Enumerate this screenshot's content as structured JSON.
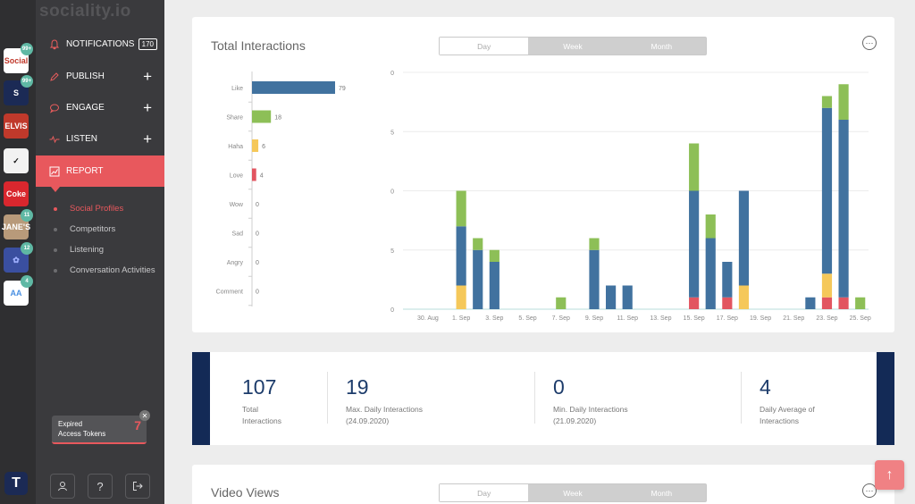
{
  "brand": "sociality.io",
  "accounts": [
    {
      "label": "Social",
      "bg": "#ffffff",
      "fg": "#c0392b",
      "badge": "99+"
    },
    {
      "label": "S",
      "bg": "#1b2a55",
      "fg": "#ffffff",
      "badge": "99+"
    },
    {
      "label": "ELVIS",
      "bg": "#c0392b",
      "fg": "#ffffff",
      "badge": ""
    },
    {
      "label": "✓",
      "bg": "#f2f2f2",
      "fg": "#111111",
      "badge": ""
    },
    {
      "label": "Coke",
      "bg": "#d9272e",
      "fg": "#ffffff",
      "badge": ""
    },
    {
      "label": "JANE'S",
      "bg": "#b89a7a",
      "fg": "#ffffff",
      "badge": "11"
    },
    {
      "label": "✿",
      "bg": "#3a4fa0",
      "fg": "#9fb0ff",
      "badge": "12"
    },
    {
      "label": "AA",
      "bg": "#ffffff",
      "fg": "#4a90e2",
      "badge": "4"
    }
  ],
  "nav": {
    "notifications": {
      "label": "NOTIFICATIONS",
      "count": "170"
    },
    "publish": "PUBLISH",
    "engage": "ENGAGE",
    "listen": "LISTEN",
    "report": "REPORT",
    "sub": [
      "Social Profiles",
      "Competitors",
      "Listening",
      "Conversation Activities"
    ]
  },
  "expired": {
    "line1": "Expired",
    "line2": "Access Tokens",
    "count": "7"
  },
  "interactions_card": {
    "title": "Total Interactions",
    "tabs": [
      "Day",
      "Week",
      "Month"
    ]
  },
  "video_card": {
    "title": "Video Views",
    "tabs": [
      "Day",
      "Week",
      "Month"
    ]
  },
  "colors": {
    "like": "#41729f",
    "share": "#8dbf57",
    "haha": "#f5c85a",
    "love": "#e25560"
  },
  "chart_data": [
    {
      "type": "bar",
      "orientation": "horizontal",
      "categories": [
        "Like",
        "Share",
        "Haha",
        "Love",
        "Wow",
        "Sad",
        "Angry",
        "Comment"
      ],
      "values": [
        79,
        18,
        6,
        4,
        0,
        0,
        0,
        0
      ]
    },
    {
      "type": "bar",
      "stacked": true,
      "x_tick_labels": [
        "30. Aug",
        "1. Sep",
        "3. Sep",
        "5. Sep",
        "7. Sep",
        "9. Sep",
        "11. Sep",
        "13. Sep",
        "15. Sep",
        "17. Sep",
        "19. Sep",
        "21. Sep",
        "23. Sep",
        "25. Sep"
      ],
      "x_days": [
        "29. Aug",
        "30. Aug",
        "31. Aug",
        "1. Sep",
        "2. Sep",
        "3. Sep",
        "4. Sep",
        "5. Sep",
        "6. Sep",
        "7. Sep",
        "8. Sep",
        "9. Sep",
        "10. Sep",
        "11. Sep",
        "12. Sep",
        "13. Sep",
        "14. Sep",
        "15. Sep",
        "16. Sep",
        "17. Sep",
        "18. Sep",
        "19. Sep",
        "20. Sep",
        "21. Sep",
        "22. Sep",
        "23. Sep",
        "24. Sep",
        "25. Sep"
      ],
      "series": [
        {
          "key": "love",
          "values": [
            0,
            0,
            0,
            0,
            0,
            0,
            0,
            0,
            0,
            0,
            0,
            0,
            0,
            0,
            0,
            0,
            0,
            1,
            0,
            1,
            0,
            0,
            0,
            0,
            0,
            1,
            1,
            0
          ]
        },
        {
          "key": "haha",
          "values": [
            0,
            0,
            0,
            2,
            0,
            0,
            0,
            0,
            0,
            0,
            0,
            0,
            0,
            0,
            0,
            0,
            0,
            0,
            0,
            0,
            2,
            0,
            0,
            0,
            0,
            2,
            0,
            0
          ]
        },
        {
          "key": "like",
          "values": [
            0,
            0,
            0,
            5,
            5,
            4,
            0,
            0,
            0,
            0,
            0,
            5,
            2,
            2,
            0,
            0,
            0,
            9,
            6,
            3,
            8,
            0,
            0,
            0,
            1,
            14,
            15,
            0
          ]
        },
        {
          "key": "share",
          "values": [
            0,
            0,
            0,
            3,
            1,
            1,
            0,
            0,
            0,
            1,
            0,
            1,
            0,
            0,
            0,
            0,
            0,
            4,
            2,
            0,
            0,
            0,
            0,
            0,
            0,
            1,
            3,
            1
          ]
        }
      ],
      "ylim": [
        0,
        20
      ],
      "y_ticks": [
        0,
        5,
        10,
        15,
        20
      ]
    }
  ],
  "stats": [
    {
      "value": "107",
      "label": "Total Interactions"
    },
    {
      "value": "19",
      "label": "Max. Daily Interactions (24.09.2020)"
    },
    {
      "value": "0",
      "label": "Min. Daily Interactions (21.09.2020)"
    },
    {
      "value": "4",
      "label": "Daily Average of Interactions"
    }
  ]
}
